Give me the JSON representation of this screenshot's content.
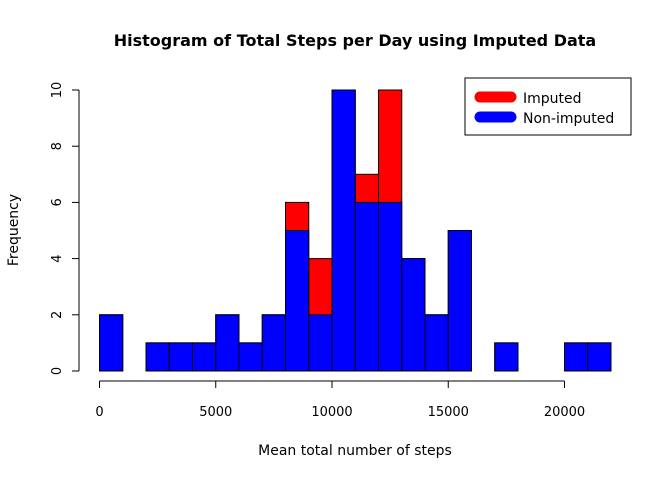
{
  "chart_data": {
    "type": "bar",
    "title": "Histogram of Total Steps per Day using Imputed Data",
    "xlabel": "Mean total number of steps",
    "ylabel": "Frequency",
    "bin_width": 1000,
    "xlim": [
      0,
      22000
    ],
    "ylim": [
      0,
      10
    ],
    "x_ticks": [
      0,
      5000,
      10000,
      15000,
      20000
    ],
    "y_ticks": [
      0,
      2,
      4,
      6,
      8,
      10
    ],
    "x_tick_labels": [
      "0",
      "5000",
      "10000",
      "15000",
      "20000"
    ],
    "y_tick_labels": [
      "0",
      "2",
      "4",
      "6",
      "8",
      "10"
    ],
    "bin_starts": [
      0,
      1000,
      2000,
      3000,
      4000,
      5000,
      6000,
      7000,
      8000,
      9000,
      10000,
      11000,
      12000,
      13000,
      14000,
      15000,
      16000,
      17000,
      18000,
      19000,
      20000,
      21000
    ],
    "series": [
      {
        "name": "Imputed",
        "color": "#ff0000",
        "values": [
          2,
          0,
          1,
          1,
          1,
          2,
          1,
          2,
          6,
          4,
          10,
          7,
          10,
          4,
          2,
          5,
          0,
          1,
          0,
          0,
          1,
          1
        ]
      },
      {
        "name": "Non-imputed",
        "color": "#0000ff",
        "values": [
          2,
          0,
          1,
          1,
          1,
          2,
          1,
          2,
          5,
          2,
          10,
          6,
          6,
          4,
          2,
          5,
          0,
          1,
          0,
          0,
          1,
          1
        ]
      }
    ],
    "legend": {
      "position": "top-right",
      "entries": [
        "Imputed",
        "Non-imputed"
      ]
    },
    "grid": false
  }
}
